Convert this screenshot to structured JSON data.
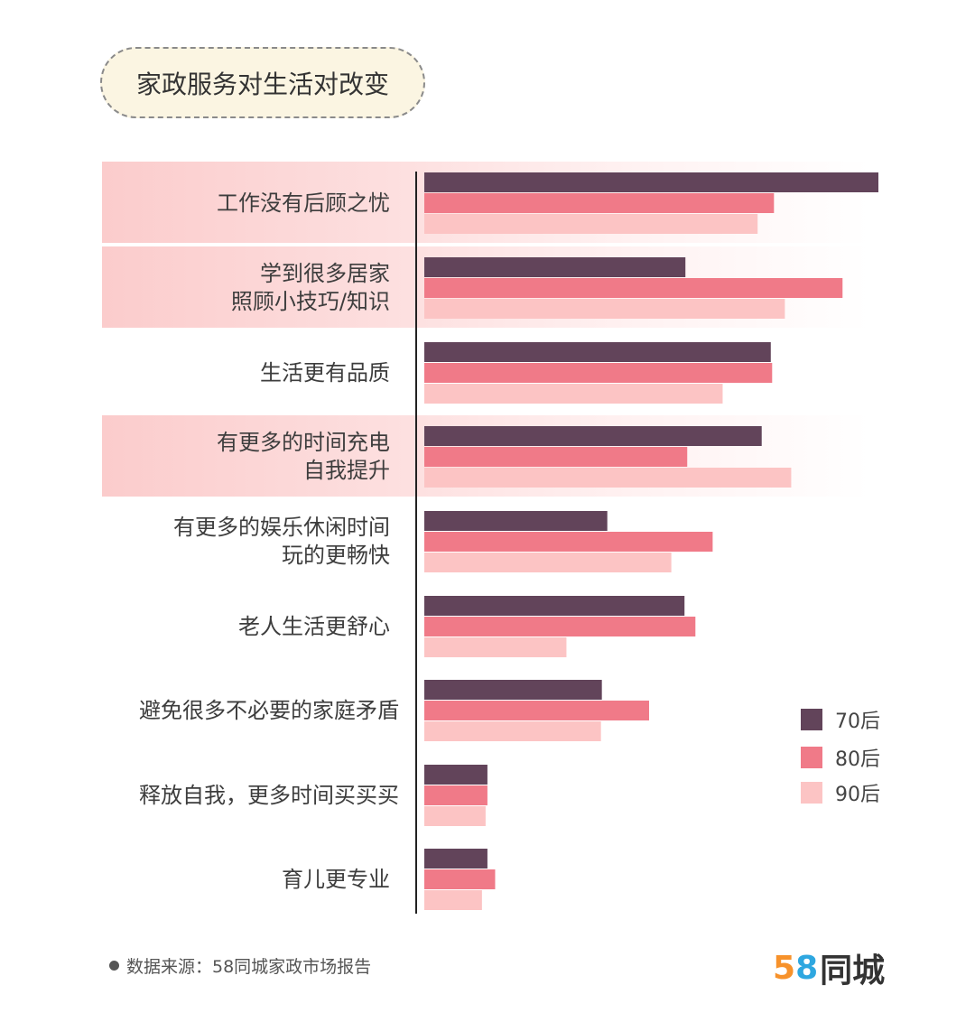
{
  "title": "家政服务对生活对改变",
  "chart_data": {
    "type": "bar",
    "orientation": "horizontal",
    "categories": [
      "工作没有后顾之忧",
      "学到很多居家\n照顾小技巧/知识",
      "生活更有品质",
      "有更多的时间充电\n自我提升",
      "有更多的娱乐休闲时间\n玩的更畅快",
      "老人生活更舒心",
      "避免很多不必要的家庭矛盾",
      "释放自我，更多时间买买买",
      "育儿更专业"
    ],
    "series": [
      {
        "name": "70后",
        "color": "#62445a",
        "values": [
          100,
          57.5,
          76.3,
          74.3,
          40.3,
          57.3,
          39.1,
          13.9,
          13.9
        ]
      },
      {
        "name": "80后",
        "color": "#f07a88",
        "values": [
          77.0,
          92.1,
          76.6,
          57.9,
          63.5,
          59.7,
          49.5,
          13.9,
          15.6
        ]
      },
      {
        "name": "90后",
        "color": "#fcc4c4",
        "values": [
          73.4,
          79.4,
          65.7,
          80.8,
          54.4,
          31.3,
          38.9,
          13.5,
          12.7
        ]
      }
    ],
    "xlim": [
      0,
      100
    ],
    "legend_position": "right",
    "grid": false
  },
  "source": "数据来源：58同城家政市场报告",
  "logo": {
    "digit1": "5",
    "digit2": "8",
    "text": "同城"
  }
}
